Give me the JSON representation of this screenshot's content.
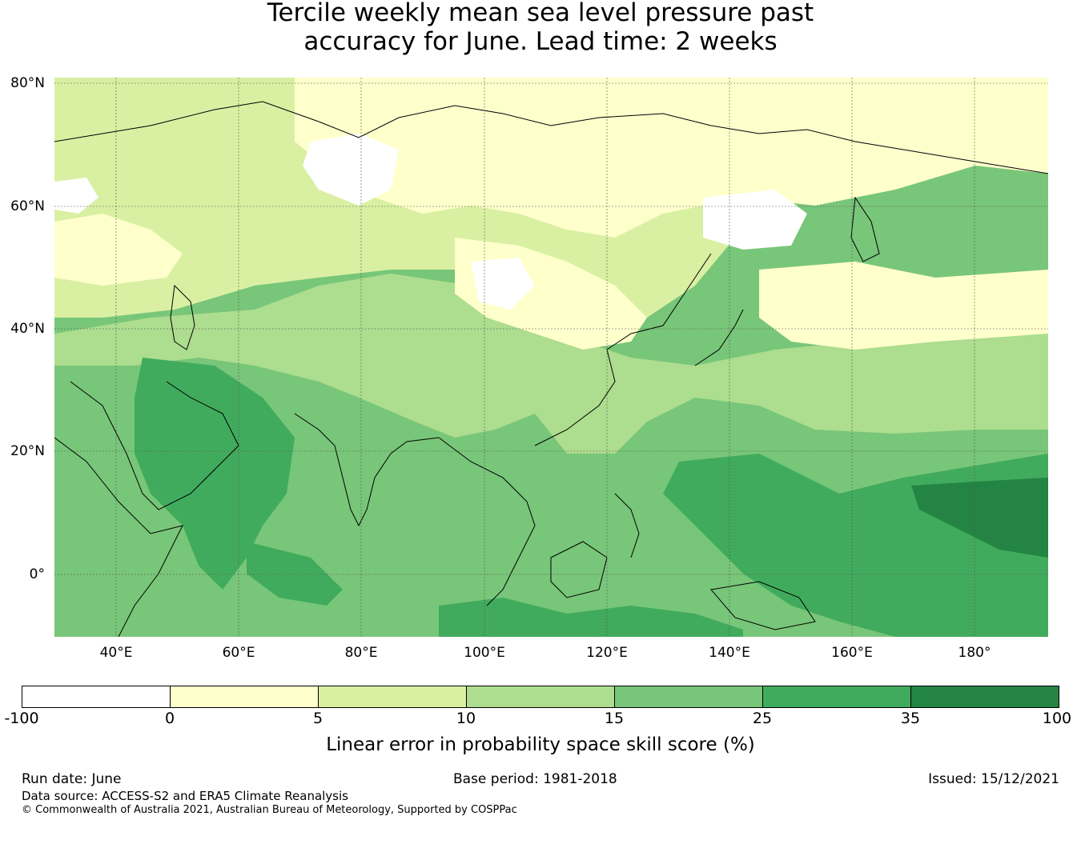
{
  "title": {
    "line1": "Tercile weekly mean sea level pressure past",
    "line2": "accuracy for June. Lead time: 2 weeks"
  },
  "map": {
    "region": "Asia, Indian Ocean and West Pacific",
    "lat_labels": [
      "80°N",
      "60°N",
      "40°N",
      "20°N",
      "0°"
    ],
    "lon_labels": [
      "40°E",
      "60°E",
      "80°E",
      "100°E",
      "120°E",
      "140°E",
      "160°E",
      "180°"
    ],
    "colors": {
      "ocean_base": "#78c679",
      "land_lines": "#000000",
      "grid": "#555555"
    }
  },
  "colorbar": {
    "ticks": [
      "-100",
      "0",
      "5",
      "10",
      "15",
      "25",
      "35",
      "100"
    ],
    "colors": [
      "#ffffff",
      "#ffffcc",
      "#d9f0a3",
      "#addd8e",
      "#78c679",
      "#41ab5d",
      "#238443"
    ],
    "label": "Linear error in probability space skill score (%)"
  },
  "footer": {
    "run_date": "Run date: June",
    "base_period": "Base period: 1981-2018",
    "issued": "Issued: 15/12/2021",
    "data_source": "Data source: ACCESS-S2 and ERA5 Climate Reanalysis",
    "copyright": "© Commonwealth of Australia 2021, Australian Bureau of Meteorology, Supported by COSPPac"
  }
}
